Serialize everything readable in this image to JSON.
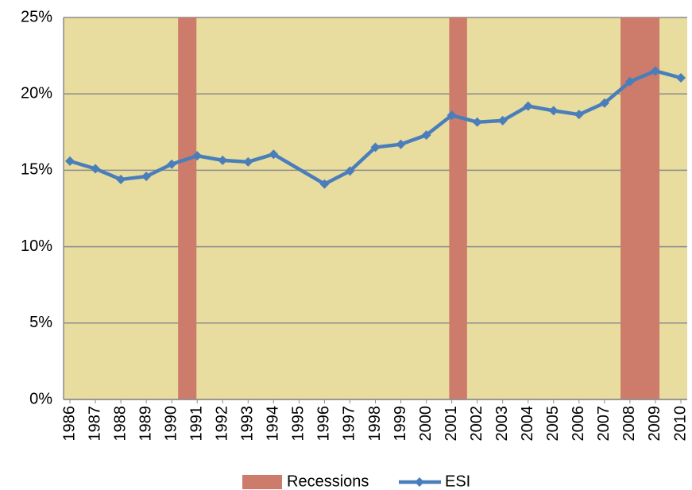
{
  "chart_data": {
    "type": "line",
    "x": [
      1986,
      1987,
      1988,
      1989,
      1990,
      1991,
      1992,
      1993,
      1994,
      1996,
      1997,
      1998,
      1999,
      2000,
      2001,
      2002,
      2003,
      2004,
      2005,
      2006,
      2007,
      2008,
      2009,
      2010
    ],
    "series": [
      {
        "name": "ESI",
        "color": "#4a7ebb",
        "values": [
          15.6,
          15.1,
          14.4,
          14.6,
          15.4,
          15.95,
          15.65,
          15.55,
          16.05,
          14.1,
          14.95,
          16.5,
          16.7,
          17.3,
          18.6,
          18.15,
          18.25,
          19.2,
          18.9,
          18.65,
          19.4,
          20.8,
          21.5,
          21.05
        ]
      }
    ],
    "recessions": {
      "name": "Recessions",
      "color": "#cd7b6a",
      "periods": [
        [
          1990.25,
          1990.97
        ],
        [
          2000.9,
          2001.6
        ],
        [
          2007.63,
          2009.16
        ]
      ]
    },
    "xlim": [
      1985.75,
      2010.25
    ],
    "xticks": [
      1986,
      1987,
      1988,
      1989,
      1990,
      1991,
      1992,
      1993,
      1994,
      1995,
      1996,
      1997,
      1998,
      1999,
      2000,
      2001,
      2002,
      2003,
      2004,
      2005,
      2006,
      2007,
      2008,
      2009,
      2010
    ],
    "ylim": [
      0,
      25
    ],
    "yticks": [
      {
        "value": 0,
        "label": "0%"
      },
      {
        "value": 5,
        "label": "5%"
      },
      {
        "value": 10,
        "label": "10%"
      },
      {
        "value": 15,
        "label": "15%"
      },
      {
        "value": 20,
        "label": "20%"
      },
      {
        "value": 25,
        "label": "25%"
      }
    ],
    "grid": true,
    "legend": "bottom",
    "background": "#e8dc9e"
  }
}
